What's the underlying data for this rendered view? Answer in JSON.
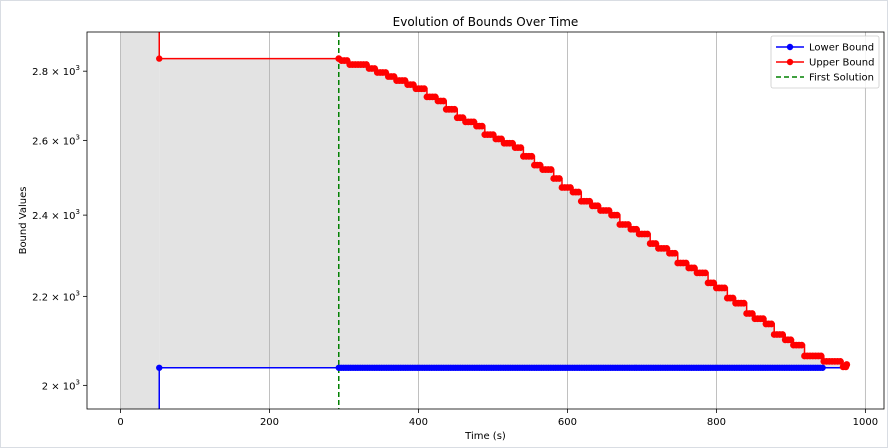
{
  "chart_data": {
    "type": "line",
    "title": "Evolution of Bounds Over Time",
    "xlabel": "Time (s)",
    "ylabel": "Bound Values",
    "xlim": [
      -45,
      1025
    ],
    "ylim": [
      1950,
      2920
    ],
    "yscale": "log",
    "grid": "x-only",
    "legend_position": "top-right",
    "x_ticks": [
      0,
      200,
      400,
      600,
      800,
      1000
    ],
    "x_tick_labels": [
      "0",
      "200",
      "400",
      "600",
      "800",
      "1000"
    ],
    "y_ticks": [
      {
        "value": 2000,
        "mantissa": "2",
        "exp": "3"
      },
      {
        "value": 2200,
        "mantissa": "2.2",
        "exp": "3"
      },
      {
        "value": 2400,
        "mantissa": "2.4",
        "exp": "3"
      },
      {
        "value": 2600,
        "mantissa": "2.6",
        "exp": "3"
      },
      {
        "value": 2800,
        "mantissa": "2.8",
        "exp": "3"
      }
    ],
    "y_tick_base_text": "× 10",
    "initial_gap_shading": {
      "x_start": 0,
      "x_end": 52
    },
    "first_solution_time": 293,
    "end_time": 975,
    "lower_bound_first_point": {
      "x": 52,
      "y": 2038
    },
    "lower_bound_value": 2038,
    "lower_bound_marker_start": 293,
    "lower_bound_marker_end": 945,
    "upper_bound_first_point": {
      "x": 52,
      "y": 2838
    },
    "upper_bound_knots": [
      [
        293,
        2838
      ],
      [
        320,
        2820
      ],
      [
        400,
        2755
      ],
      [
        450,
        2675
      ],
      [
        545,
        2560
      ],
      [
        600,
        2470
      ],
      [
        700,
        2350
      ],
      [
        800,
        2225
      ],
      [
        860,
        2145
      ],
      [
        920,
        2070
      ],
      [
        945,
        2055
      ],
      [
        975,
        2045
      ]
    ],
    "series": [
      {
        "name": "Lower Bound",
        "color": "#0000ff",
        "style": "solid",
        "marker": "circle"
      },
      {
        "name": "Upper Bound",
        "color": "#ff0000",
        "style": "solid",
        "marker": "circle"
      },
      {
        "name": "First Solution",
        "color": "#008000",
        "style": "dashed",
        "marker": "none"
      }
    ],
    "colors": {
      "shading": "#e3e3e3",
      "grid": "#b0b0b0",
      "axes": "#000000"
    }
  }
}
